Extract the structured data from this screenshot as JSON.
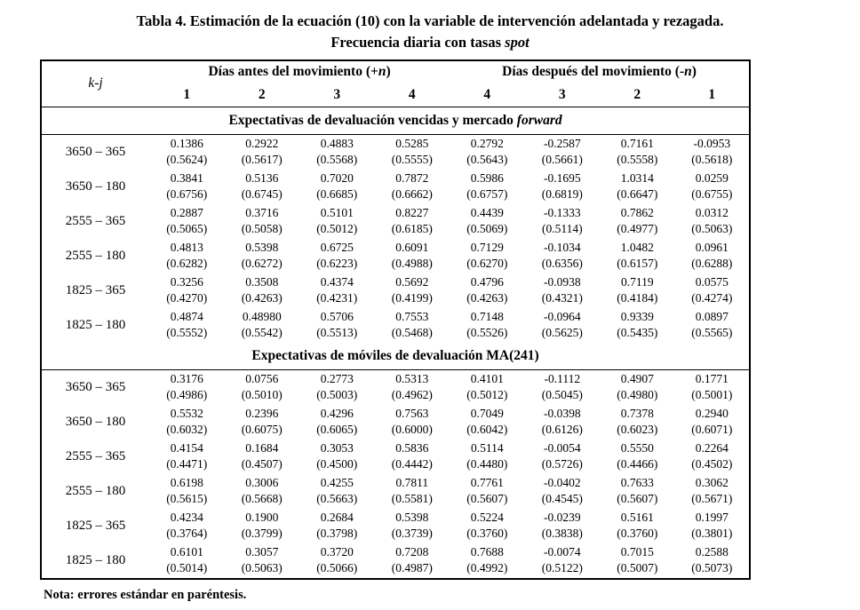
{
  "page": {
    "title_line1": "Tabla 4. Estimación de la ecuación (10) con la variable de intervención adelantada y rezagada.",
    "title_line2": {
      "prefix": "Frecuencia diaria con tasas ",
      "italic": "spot",
      "suffix": ""
    },
    "note": "Nota: errores estándar en paréntesis."
  },
  "table": {
    "corner_label": "k-j",
    "column_groups": [
      {
        "prefix": "Días antes del movimiento (+",
        "italic": "n",
        "suffix": ")"
      },
      {
        "prefix": "Días después del movimiento (-",
        "italic": "n",
        "suffix": ")"
      }
    ],
    "column_numbers": [
      "1",
      "2",
      "3",
      "4",
      "4",
      "3",
      "2",
      "1"
    ],
    "sections": [
      {
        "title": {
          "prefix": "Expectativas de devaluación vencidas y mercado ",
          "italic": "forward",
          "suffix": ""
        },
        "rows": [
          {
            "label": "3650 – 365",
            "values": [
              "0.1386",
              "0.2922",
              "0.4883",
              "0.5285",
              "0.2792",
              "-0.2587",
              "0.7161",
              "-0.0953"
            ],
            "errors": [
              "(0.5624)",
              "(0.5617)",
              "(0.5568)",
              "(0.5555)",
              "(0.5643)",
              "(0.5661)",
              "(0.5558)",
              "(0.5618)"
            ]
          },
          {
            "label": "3650 – 180",
            "values": [
              "0.3841",
              "0.5136",
              "0.7020",
              "0.7872",
              "0.5986",
              "-0.1695",
              "1.0314",
              "0.0259"
            ],
            "errors": [
              "(0.6756)",
              "(0.6745)",
              "(0.6685)",
              "(0.6662)",
              "(0.6757)",
              "(0.6819)",
              "(0.6647)",
              "(0.6755)"
            ]
          },
          {
            "label": "2555 – 365",
            "values": [
              "0.2887",
              "0.3716",
              "0.5101",
              "0.8227",
              "0.4439",
              "-0.1333",
              "0.7862",
              "0.0312"
            ],
            "errors": [
              "(0.5065)",
              "(0.5058)",
              "(0.5012)",
              "(0.6185)",
              "(0.5069)",
              "(0.5114)",
              "(0.4977)",
              "(0.5063)"
            ]
          },
          {
            "label": "2555 – 180",
            "values": [
              "0.4813",
              "0.5398",
              "0.6725",
              "0.6091",
              "0.7129",
              "-0.1034",
              "1.0482",
              "0.0961"
            ],
            "errors": [
              "(0.6282)",
              "(0.6272)",
              "(0.6223)",
              "(0.4988)",
              "(0.6270)",
              "(0.6356)",
              "(0.6157)",
              "(0.6288)"
            ]
          },
          {
            "label": "1825 – 365",
            "values": [
              "0.3256",
              "0.3508",
              "0.4374",
              "0.5692",
              "0.4796",
              "-0.0938",
              "0.7119",
              "0.0575"
            ],
            "errors": [
              "(0.4270)",
              "(0.4263)",
              "(0.4231)",
              "(0.4199)",
              "(0.4263)",
              "(0.4321)",
              "(0.4184)",
              "(0.4274)"
            ]
          },
          {
            "label": "1825 – 180",
            "values": [
              "0.4874",
              "0.48980",
              "0.5706",
              "0.7553",
              "0.7148",
              "-0.0964",
              "0.9339",
              "0.0897"
            ],
            "errors": [
              "(0.5552)",
              "(0.5542)",
              "(0.5513)",
              "(0.5468)",
              "(0.5526)",
              "(0.5625)",
              "(0.5435)",
              "(0.5565)"
            ]
          }
        ]
      },
      {
        "title": {
          "prefix": "Expectativas de móviles de devaluación MA(241)",
          "italic": "",
          "suffix": ""
        },
        "rows": [
          {
            "label": "3650 – 365",
            "values": [
              "0.3176",
              "0.0756",
              "0.2773",
              "0.5313",
              "0.4101",
              "-0.1112",
              "0.4907",
              "0.1771"
            ],
            "errors": [
              "(0.4986)",
              "(0.5010)",
              "(0.5003)",
              "(0.4962)",
              "(0.5012)",
              "(0.5045)",
              "(0.4980)",
              "(0.5001)"
            ]
          },
          {
            "label": "3650 – 180",
            "values": [
              "0.5532",
              "0.2396",
              "0.4296",
              "0.7563",
              "0.7049",
              "-0.0398",
              "0.7378",
              "0.2940"
            ],
            "errors": [
              "(0.6032)",
              "(0.6075)",
              "(0.6065)",
              "(0.6000)",
              "(0.6042)",
              "(0.6126)",
              "(0.6023)",
              "(0.6071)"
            ]
          },
          {
            "label": "2555 – 365",
            "values": [
              "0.4154",
              "0.1684",
              "0.3053",
              "0.5836",
              "0.5114",
              "-0.0054",
              "0.5550",
              "0.2264"
            ],
            "errors": [
              "(0.4471)",
              "(0.4507)",
              "(0.4500)",
              "(0.4442)",
              "(0.4480)",
              "(0.5726)",
              "(0.4466)",
              "(0.4502)"
            ]
          },
          {
            "label": "2555 – 180",
            "values": [
              "0.6198",
              "0.3006",
              "0.4255",
              "0.7811",
              "0.7761",
              "-0.0402",
              "0.7633",
              "0.3062"
            ],
            "errors": [
              "(0.5615)",
              "(0.5668)",
              "(0.5663)",
              "(0.5581)",
              "(0.5607)",
              "(0.4545)",
              "(0.5607)",
              "(0.5671)"
            ]
          },
          {
            "label": "1825 – 365",
            "values": [
              "0.4234",
              "0.1900",
              "0.2684",
              "0.5398",
              "0.5224",
              "-0.0239",
              "0.5161",
              "0.1997"
            ],
            "errors": [
              "(0.3764)",
              "(0.3799)",
              "(0.3798)",
              "(0.3739)",
              "(0.3760)",
              "(0.3838)",
              "(0.3760)",
              "(0.3801)"
            ]
          },
          {
            "label": "1825 – 180",
            "values": [
              "0.6101",
              "0.3057",
              "0.3720",
              "0.7208",
              "0.7688",
              "-0.0074",
              "0.7015",
              "0.2588"
            ],
            "errors": [
              "(0.5014)",
              "(0.5063)",
              "(0.5066)",
              "(0.4987)",
              "(0.4992)",
              "(0.5122)",
              "(0.5007)",
              "(0.5073)"
            ]
          }
        ]
      }
    ]
  }
}
